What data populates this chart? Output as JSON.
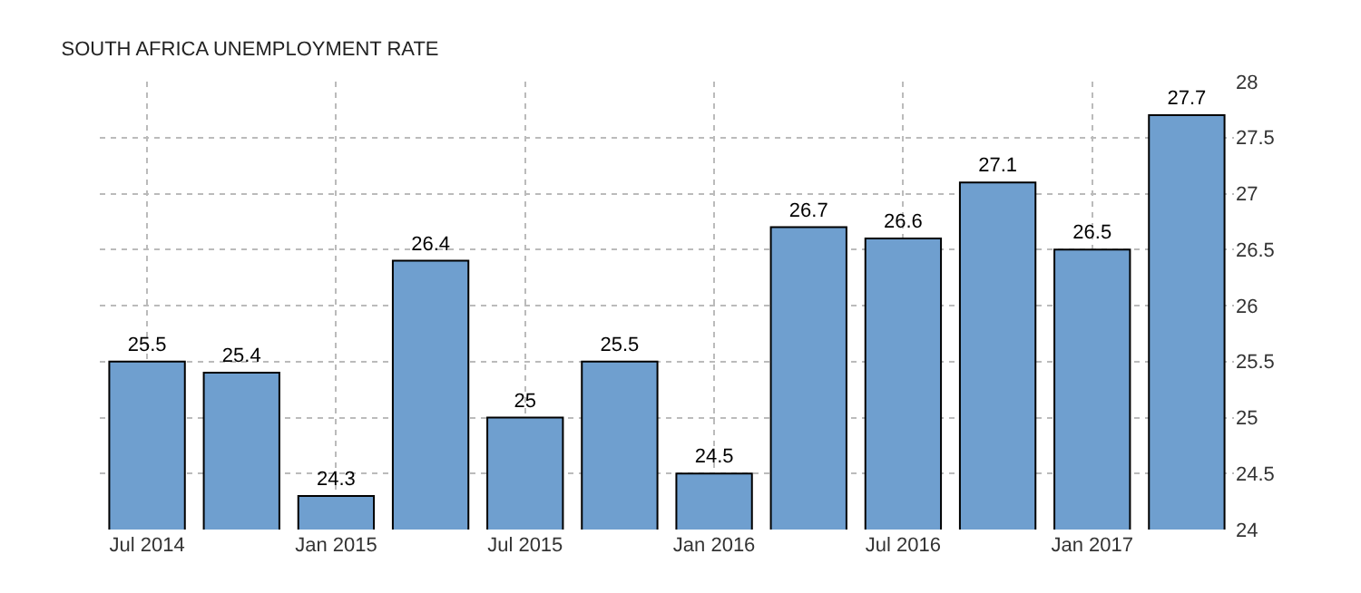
{
  "chart_data": {
    "type": "bar",
    "title": "SOUTH AFRICA UNEMPLOYMENT RATE",
    "categories": [
      "Jul 2014",
      null,
      "Jan 2015",
      null,
      "Jul 2015",
      null,
      "Jan 2016",
      null,
      "Jul 2016",
      null,
      "Jan 2017",
      null
    ],
    "values": [
      25.5,
      25.4,
      24.3,
      26.4,
      25,
      25.5,
      24.5,
      26.7,
      26.6,
      27.1,
      26.5,
      27.7
    ],
    "color": "#6f9fcf",
    "ylim": [
      24,
      28
    ],
    "yticks": [
      24,
      24.5,
      25,
      25.5,
      26,
      26.5,
      27,
      27.5,
      28
    ],
    "grid": true,
    "data_labels": true
  }
}
